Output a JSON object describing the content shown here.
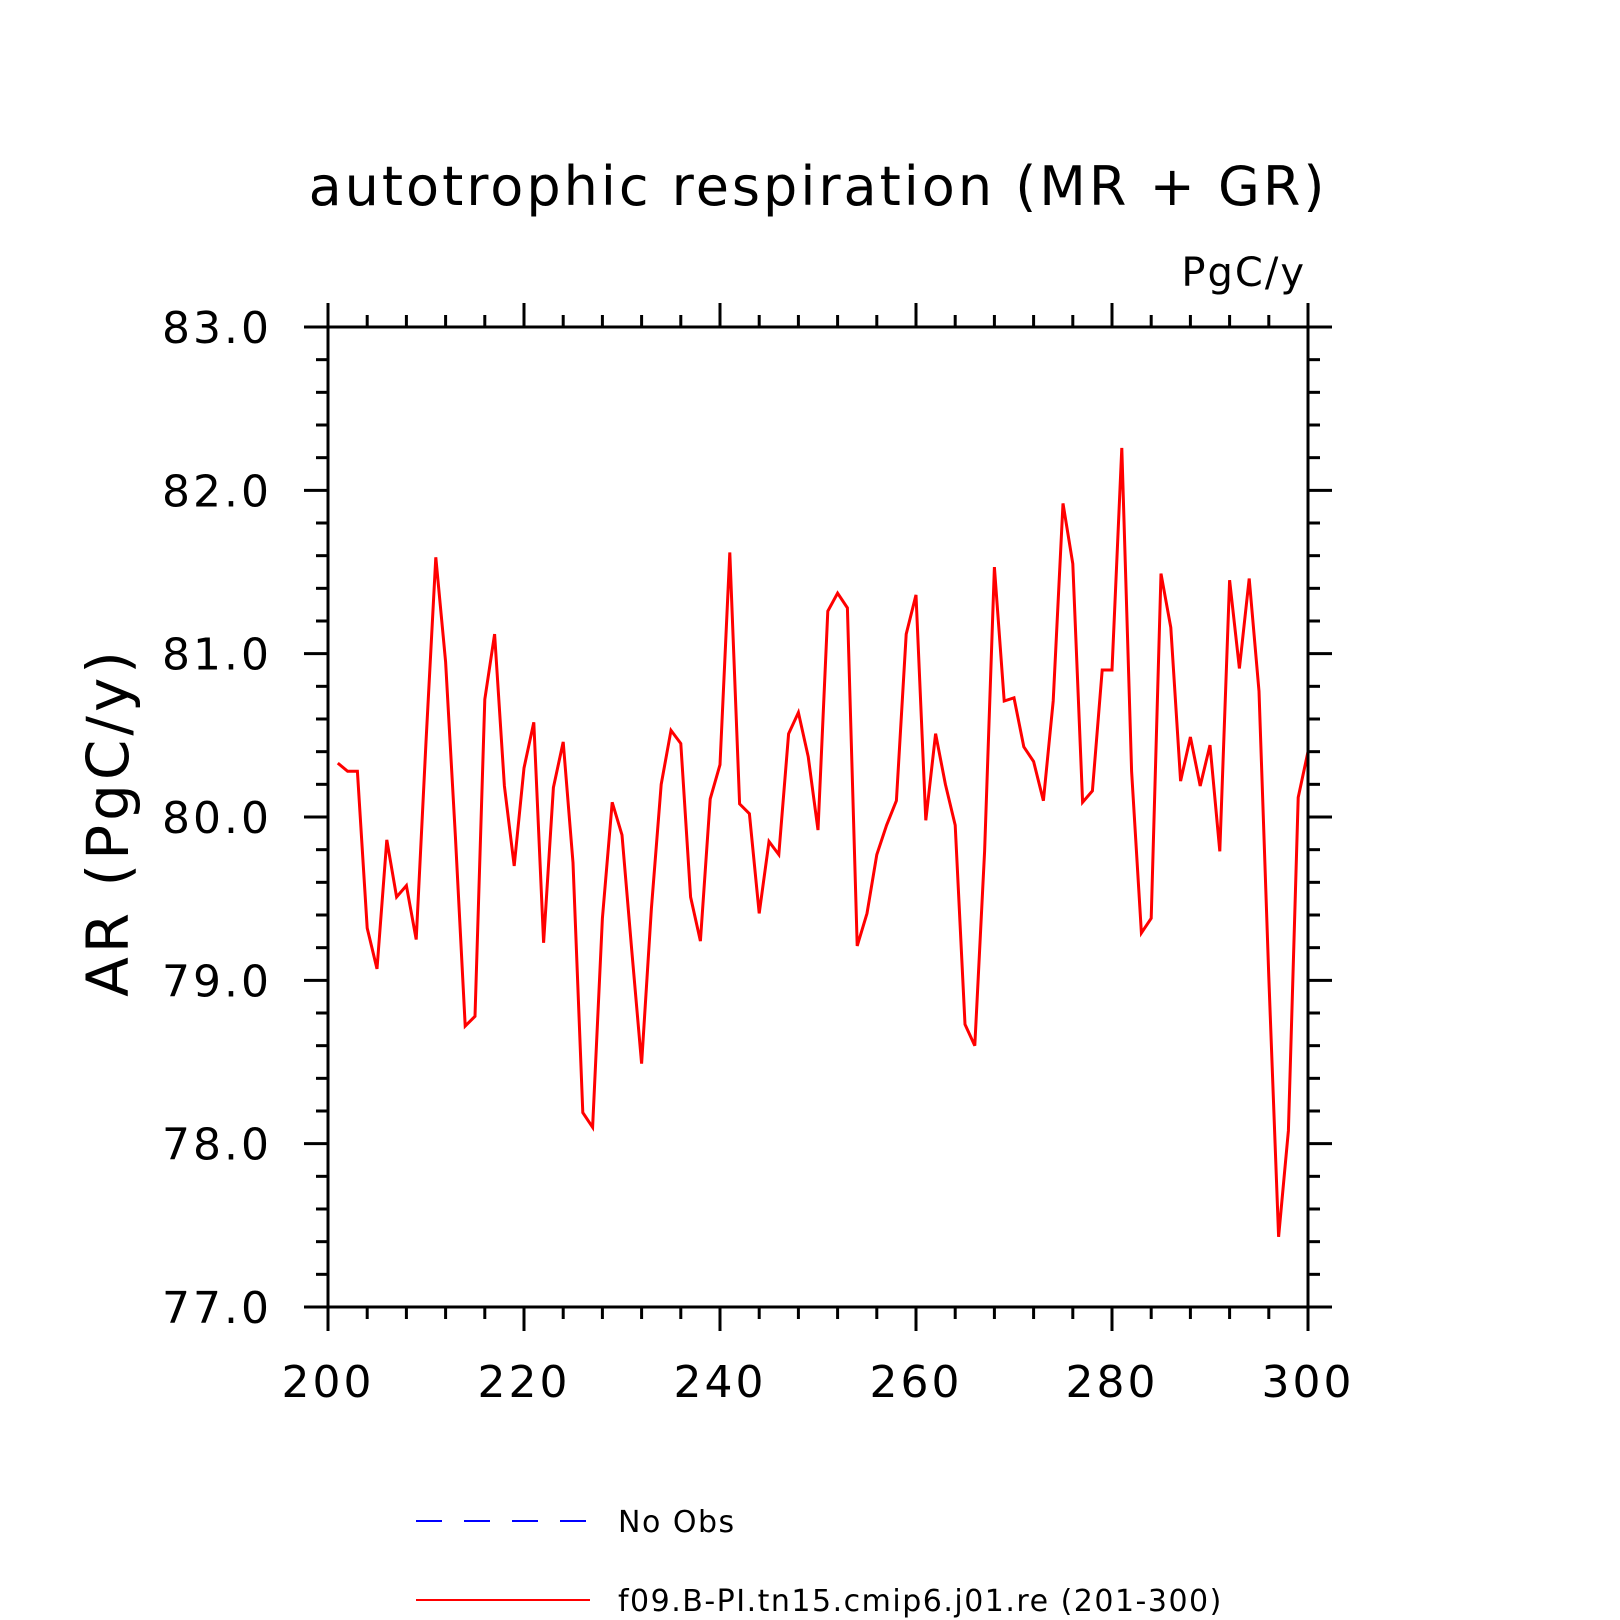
{
  "chart_data": {
    "type": "line",
    "title": "autotrophic respiration (MR + GR)",
    "units_label": "PgC/y",
    "xlabel": "",
    "ylabel": "AR  (PgC/y)",
    "xlim": [
      200,
      300
    ],
    "ylim": [
      77.0,
      83.0
    ],
    "x_ticks": [
      "200",
      "220",
      "240",
      "260",
      "280",
      "300"
    ],
    "y_ticks": [
      "77.0",
      "78.0",
      "79.0",
      "80.0",
      "81.0",
      "82.0",
      "83.0"
    ],
    "grid": false,
    "legend_placement": "bottom",
    "legend": [
      {
        "label": "No Obs",
        "color": "#0000ff",
        "style": "dashed"
      },
      {
        "label": "f09.B-PI.tn15.cmip6.j01.re (201-300)",
        "color": "#ff0000",
        "style": "solid"
      }
    ],
    "series": [
      {
        "name": "f09.B-PI.tn15.cmip6.j01.re (201-300)",
        "color": "#ff0000",
        "x": [
          201,
          202,
          203,
          204,
          205,
          206,
          207,
          208,
          209,
          210,
          211,
          212,
          213,
          214,
          215,
          216,
          217,
          218,
          219,
          220,
          221,
          222,
          223,
          224,
          225,
          226,
          227,
          228,
          229,
          230,
          231,
          232,
          233,
          234,
          235,
          236,
          237,
          238,
          239,
          240,
          241,
          242,
          243,
          244,
          245,
          246,
          247,
          248,
          249,
          250,
          251,
          252,
          253,
          254,
          255,
          256,
          257,
          258,
          259,
          260,
          261,
          262,
          263,
          264,
          265,
          266,
          267,
          268,
          269,
          270,
          271,
          272,
          273,
          274,
          275,
          276,
          277,
          278,
          279,
          280,
          281,
          282,
          283,
          284,
          285,
          286,
          287,
          288,
          289,
          290,
          291,
          292,
          293,
          294,
          295,
          296,
          297,
          298,
          299,
          300
        ],
        "values": [
          80.33,
          80.28,
          80.28,
          79.32,
          79.07,
          79.86,
          79.51,
          79.58,
          79.25,
          80.46,
          81.59,
          80.95,
          79.88,
          78.72,
          78.78,
          80.72,
          81.12,
          80.19,
          79.7,
          80.3,
          80.58,
          79.23,
          80.18,
          80.46,
          79.72,
          78.19,
          78.1,
          79.38,
          80.09,
          79.89,
          79.18,
          78.49,
          79.44,
          80.2,
          80.53,
          80.45,
          79.51,
          79.24,
          80.11,
          80.32,
          81.62,
          80.08,
          80.02,
          79.41,
          79.85,
          79.77,
          80.51,
          80.64,
          80.37,
          79.92,
          81.26,
          81.37,
          81.28,
          79.21,
          79.41,
          79.77,
          79.95,
          80.1,
          81.12,
          81.36,
          79.98,
          80.51,
          80.2,
          79.95,
          78.73,
          78.6,
          79.79,
          81.53,
          80.71,
          80.73,
          80.43,
          80.34,
          80.1,
          80.71,
          81.92,
          81.55,
          80.09,
          80.16,
          80.9,
          80.9,
          82.26,
          80.28,
          79.29,
          79.38,
          81.49,
          81.16,
          80.22,
          80.49,
          80.19,
          80.44,
          79.79,
          81.45,
          80.91,
          81.46,
          80.77,
          79.02,
          77.43,
          78.08,
          80.12,
          80.4
        ]
      }
    ]
  }
}
